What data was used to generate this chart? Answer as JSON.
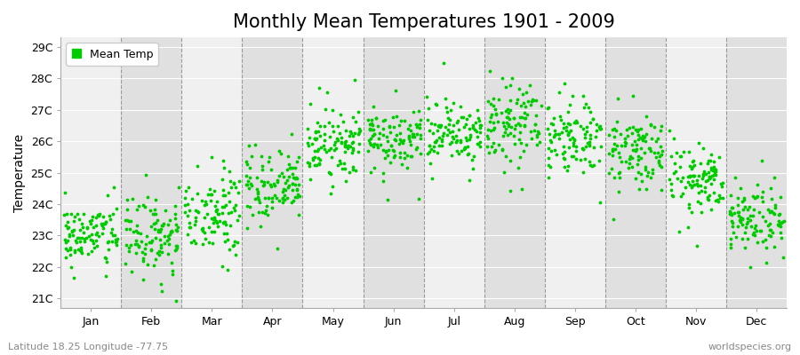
{
  "title": "Monthly Mean Temperatures 1901 - 2009",
  "ylabel": "Temperature",
  "subtitle": "Latitude 18.25 Longitude -77.75",
  "watermark": "worldspecies.org",
  "legend_label": "Mean Temp",
  "dot_color": "#00cc00",
  "bg_color": "#ffffff",
  "plot_bg_color_light": "#f0f0f0",
  "plot_bg_color_dark": "#e0e0e0",
  "ytick_labels": [
    "21C",
    "22C",
    "23C",
    "24C",
    "25C",
    "26C",
    "27C",
    "28C",
    "29C"
  ],
  "ytick_values": [
    21,
    22,
    23,
    24,
    25,
    26,
    27,
    28,
    29
  ],
  "ylim": [
    20.7,
    29.3
  ],
  "month_names": [
    "Jan",
    "Feb",
    "Mar",
    "Apr",
    "May",
    "Jun",
    "Jul",
    "Aug",
    "Sep",
    "Oct",
    "Nov",
    "Dec"
  ],
  "month_means": [
    23.0,
    23.0,
    23.7,
    24.5,
    25.8,
    26.1,
    26.3,
    26.6,
    26.2,
    25.7,
    24.8,
    23.6
  ],
  "month_stds": [
    0.5,
    0.6,
    0.6,
    0.55,
    0.5,
    0.48,
    0.55,
    0.6,
    0.62,
    0.52,
    0.52,
    0.52
  ],
  "n_years": 109,
  "seed": 42,
  "title_fontsize": 15,
  "axis_label_fontsize": 10,
  "tick_fontsize": 9,
  "legend_fontsize": 9,
  "dot_size": 3,
  "dpi": 100
}
